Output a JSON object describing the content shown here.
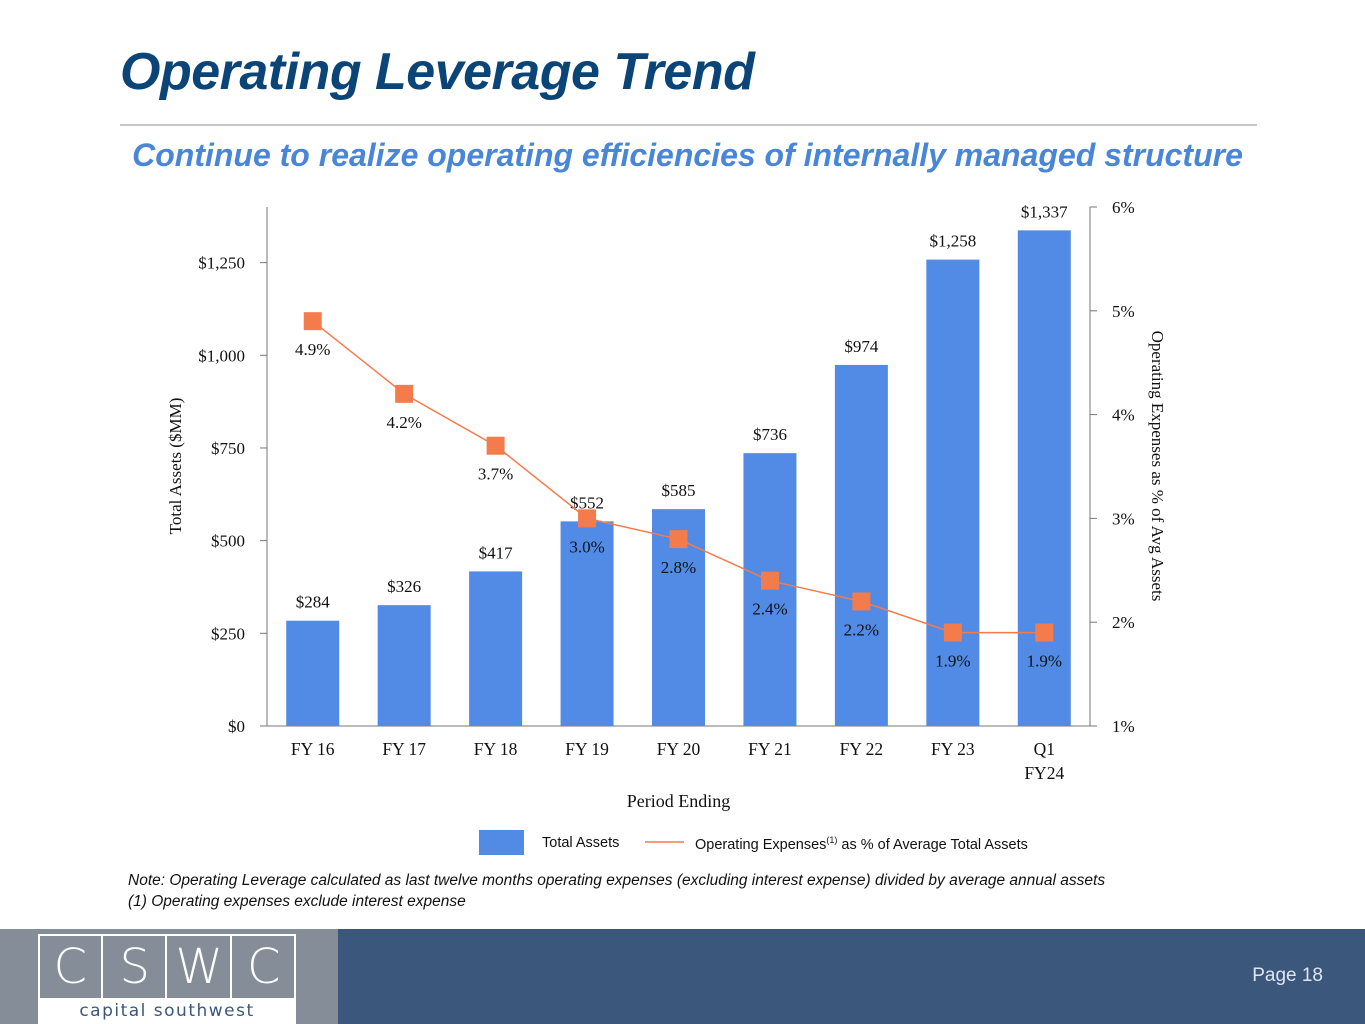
{
  "header": {
    "title": "Operating Leverage Trend",
    "subtitle": "Continue to realize operating efficiencies of internally managed structure"
  },
  "chart_data": {
    "type": "bar",
    "categories": [
      "FY 16",
      "FY 17",
      "FY 18",
      "FY 19",
      "FY 20",
      "FY 21",
      "FY 22",
      "FY 23",
      "Q1\nFY24"
    ],
    "xlabel": "Period Ending",
    "ylabel": "Total Assets ($MM)",
    "y2label": "Operating Expenses as % of Avg Assets",
    "ylim": [
      0,
      1400
    ],
    "y2lim": [
      1,
      6
    ],
    "yticks": [
      "$0",
      "$250",
      "$500",
      "$750",
      "$1,000",
      "$1,250"
    ],
    "y2ticks": [
      "1%",
      "2%",
      "3%",
      "4%",
      "5%",
      "6%"
    ],
    "series": [
      {
        "name": "Total Assets",
        "type": "bar",
        "color": "#518be5",
        "values": [
          284,
          326,
          417,
          552,
          585,
          736,
          974,
          1258,
          1337
        ],
        "labels": [
          "$284",
          "$326",
          "$417",
          "$552",
          "$585",
          "$736",
          "$974",
          "$1,258",
          "$1,337"
        ]
      },
      {
        "name": "Operating Expenses(1) as % of Average Total Assets",
        "type": "line",
        "axis": "right",
        "color": "#f47b4c",
        "values": [
          4.9,
          4.2,
          3.7,
          3.0,
          2.8,
          2.4,
          2.2,
          1.9,
          1.9
        ],
        "labels": [
          "4.9%",
          "4.2%",
          "3.7%",
          "3.0%",
          "2.8%",
          "2.4%",
          "2.2%",
          "1.9%",
          "1.9%"
        ]
      }
    ],
    "legend": {
      "position": "bottom",
      "bar_label": "Total Assets",
      "line_label_main": "Operating Expenses",
      "line_label_sup": "(1)",
      "line_label_rest": " as % of Average Total Assets"
    }
  },
  "notes": {
    "line1": "Note: Operating Leverage calculated as last twelve months operating expenses (excluding interest expense) divided by average annual assets",
    "line2": "(1) Operating expenses exclude interest expense"
  },
  "footer": {
    "logo_letters": [
      "C",
      "S",
      "W",
      "C"
    ],
    "logo_tagline": "capital southwest",
    "page_label": "Page 18"
  }
}
